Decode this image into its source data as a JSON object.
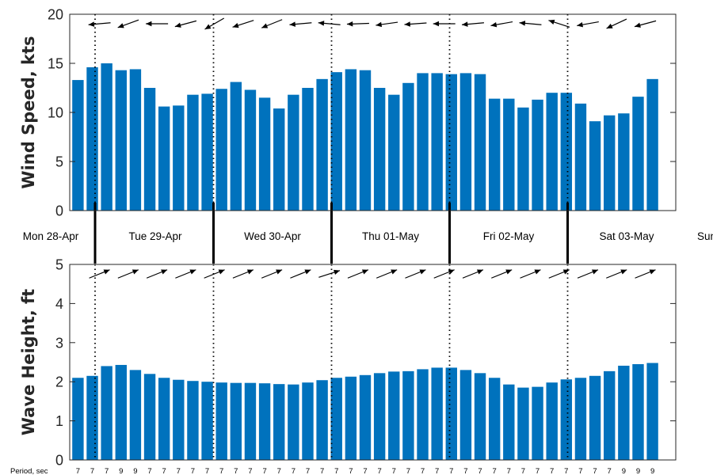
{
  "chart_data": [
    {
      "type": "bar",
      "ylabel": "Wind Speed, kts",
      "ylim": [
        0,
        20
      ],
      "yticks": [
        0,
        5,
        10,
        15,
        20
      ],
      "grid": false,
      "values": [
        13.3,
        14.6,
        15.0,
        14.3,
        14.4,
        12.5,
        10.6,
        10.7,
        11.8,
        11.9,
        12.4,
        13.1,
        12.3,
        11.5,
        10.4,
        11.8,
        12.5,
        13.4,
        14.1,
        14.4,
        14.3,
        12.5,
        11.8,
        13.0,
        14.0,
        14.0,
        13.9,
        14.0,
        13.9,
        11.4,
        11.4,
        10.5,
        11.3,
        12.0,
        12.0,
        10.9,
        9.1,
        9.7,
        9.9,
        11.6,
        13.4
      ],
      "direction_arrows": "wind direction arrows above bars, pointing mostly westward"
    },
    {
      "type": "bar",
      "ylabel": "Wave Height, ft",
      "ylim": [
        0,
        5
      ],
      "yticks": [
        0,
        1,
        2,
        3,
        4,
        5
      ],
      "grid": false,
      "values": [
        2.1,
        2.15,
        2.4,
        2.43,
        2.3,
        2.2,
        2.1,
        2.05,
        2.02,
        2.0,
        1.98,
        1.97,
        1.97,
        1.96,
        1.94,
        1.93,
        1.98,
        2.04,
        2.1,
        2.13,
        2.17,
        2.22,
        2.26,
        2.27,
        2.32,
        2.36,
        2.36,
        2.3,
        2.22,
        2.1,
        1.93,
        1.85,
        1.87,
        1.98,
        2.06,
        2.1,
        2.15,
        2.27,
        2.41,
        2.45,
        2.48
      ],
      "direction_arrows": "wave direction arrows above bars, pointing northeast"
    }
  ],
  "days": [
    "Mon 28-Apr",
    "Tue 29-Apr",
    "Wed 30-Apr",
    "Thu 01-May",
    "Fri 02-May",
    "Sat 03-May",
    "Sun"
  ],
  "period_label": "Period, sec",
  "periods": [
    "7",
    "7",
    "7",
    "9",
    "9",
    "7",
    "7",
    "7",
    "7",
    "7",
    "7",
    "7",
    "7",
    "7",
    "7",
    "7",
    "7",
    "7",
    "7",
    "7",
    "7",
    "7",
    "7",
    "7",
    "7",
    "7",
    "7",
    "7",
    "7",
    "7",
    "7",
    "7",
    "7",
    "7",
    "7",
    "7",
    "7",
    "7",
    "9",
    "9",
    "9"
  ],
  "colors": {
    "bar": "#0072BD",
    "axis": "#262626",
    "divider": "#000000"
  }
}
